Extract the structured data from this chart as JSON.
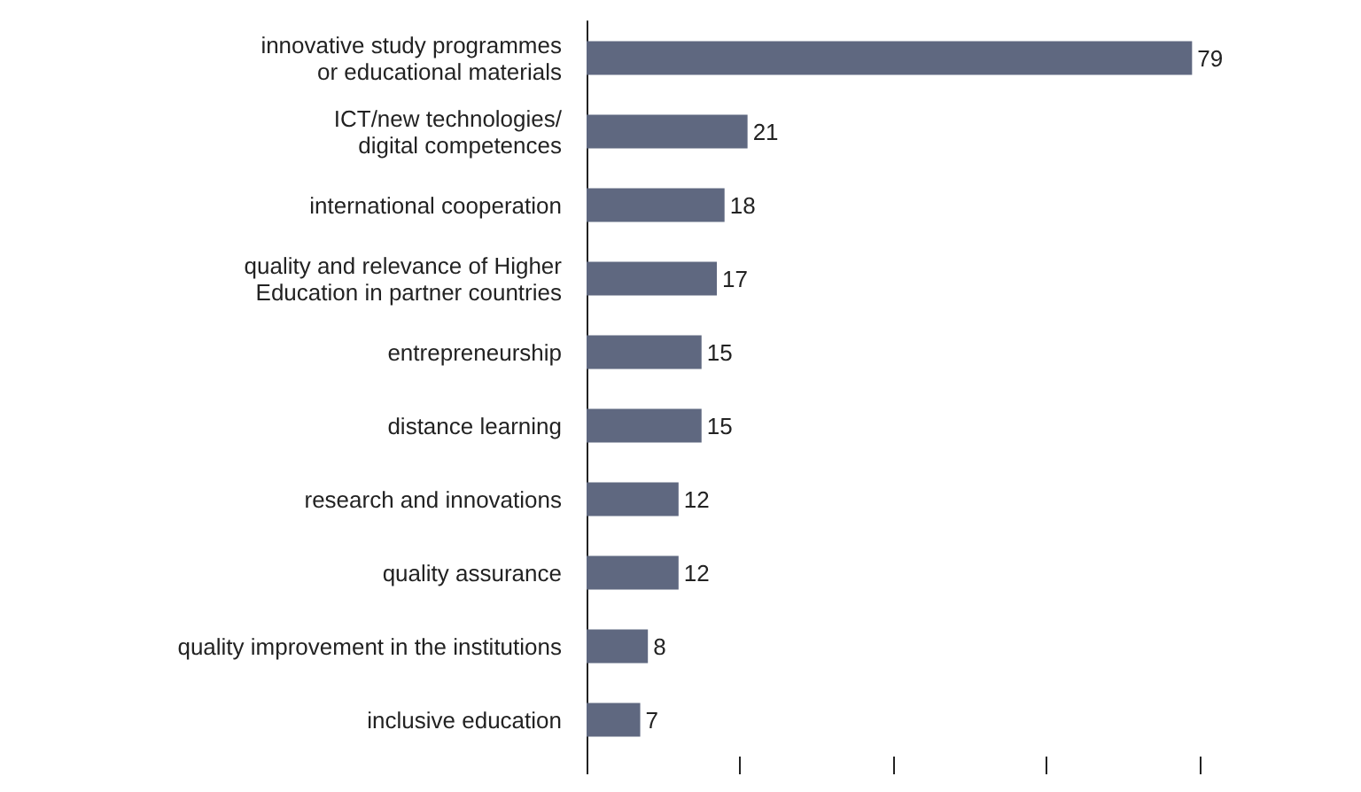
{
  "chart_data": {
    "type": "bar",
    "orientation": "horizontal",
    "categories": [
      "innovative study programmes\nor educational materials",
      "ICT/new technologies/\ndigital competences",
      "international cooperation",
      "quality and relevance of Higher\nEducation in partner countries",
      "entrepreneurship",
      "distance learning",
      "research and innovations",
      "quality assurance",
      "quality improvement in the institutions",
      "inclusive education"
    ],
    "values": [
      79,
      21,
      18,
      17,
      15,
      15,
      12,
      12,
      8,
      7
    ],
    "color": "#5f6880",
    "data_labels": true,
    "grid": false
  }
}
